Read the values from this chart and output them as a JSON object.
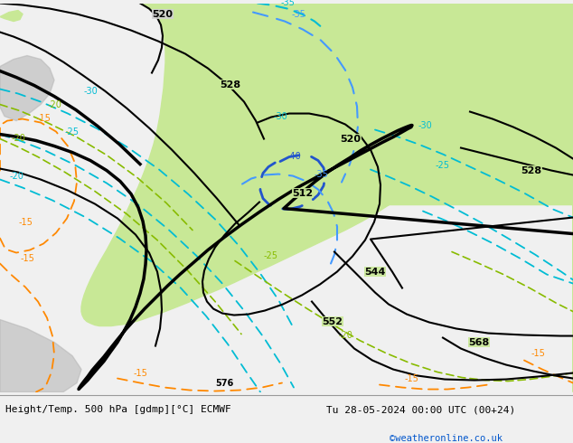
{
  "title_left": "Height/Temp. 500 hPa [gdmp][°C] ECMWF",
  "title_right": "Tu 28-05-2024 00:00 UTC (00+24)",
  "title_right2": "©weatheronline.co.uk",
  "map_gray": "#d0d0d0",
  "green_light": "#c8e896",
  "land_gray": "#b8b8b8",
  "cyan_color": "#00bcd4",
  "blue_color": "#4499ff",
  "blue_dark": "#2255cc",
  "green_dash": "#88bb00",
  "orange_color": "#ff8800"
}
